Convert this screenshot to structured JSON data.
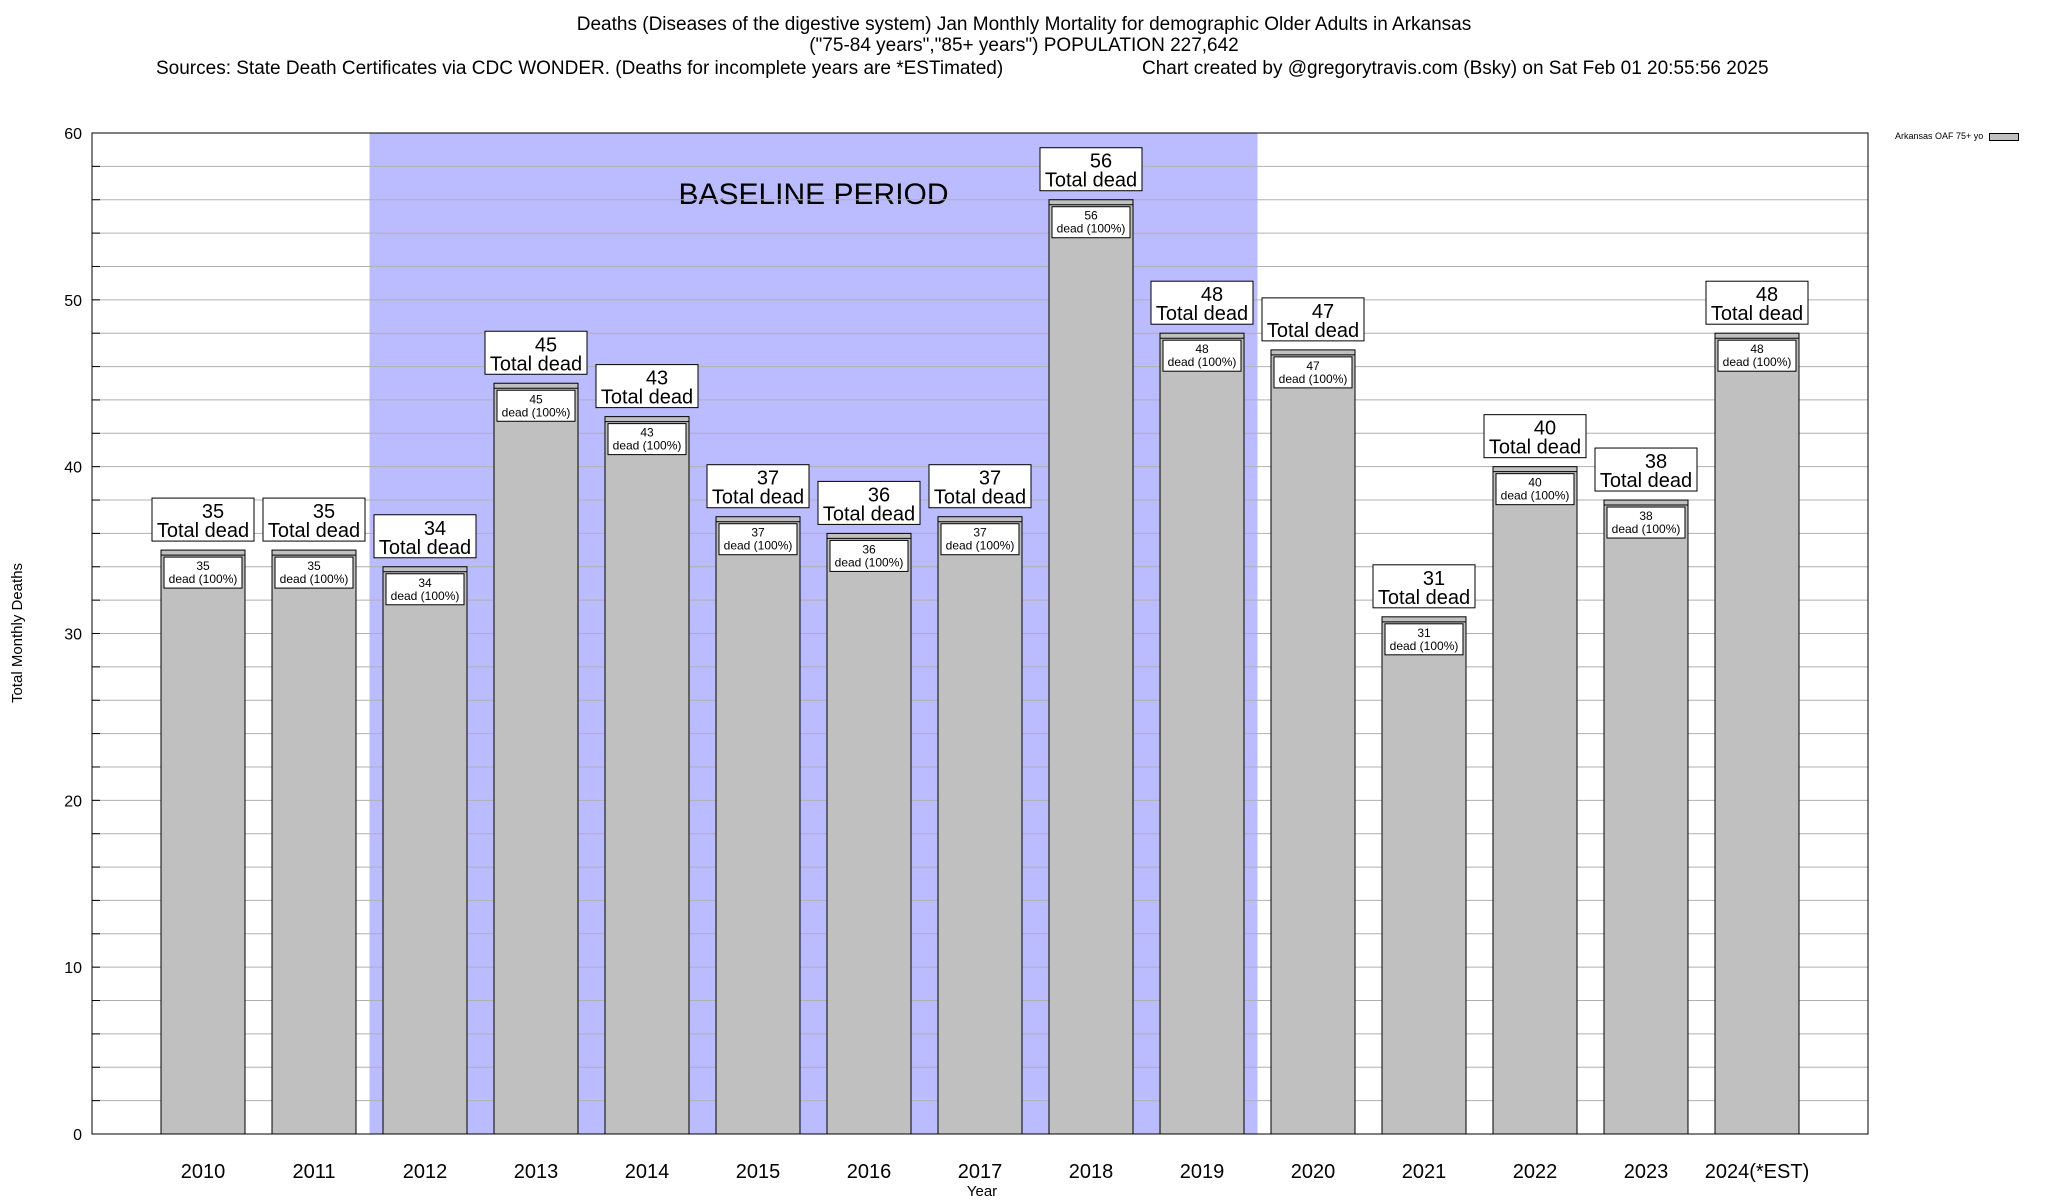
{
  "chart_data": {
    "type": "bar",
    "title_lines": [
      "Deaths (Diseases of the digestive system) Jan Monthly Mortality for demographic Older Adults in Arkansas",
      "(\"75-84 years\",\"85+ years\") POPULATION 227,642",
      "Sources: State Death Certificates via CDC WONDER. (Deaths for incomplete years are *ESTimated)",
      "Chart created by @gregorytravis.com (Bsky) on Sat Feb 01 20:55:56 2025"
    ],
    "xlabel": "Year",
    "ylabel": "Total Monthly Deaths",
    "ylim": [
      0,
      60
    ],
    "yticks": [
      0,
      10,
      20,
      30,
      40,
      50,
      60
    ],
    "categories": [
      "2010",
      "2011",
      "2012",
      "2013",
      "2014",
      "2015",
      "2016",
      "2017",
      "2018",
      "2019",
      "2020",
      "2021",
      "2022",
      "2023",
      "2024(*EST)"
    ],
    "series": [
      {
        "name": "Arkansas OAF 75+ yo",
        "values": [
          35,
          35,
          34,
          45,
          43,
          37,
          36,
          37,
          56,
          48,
          47,
          31,
          40,
          38,
          48
        ]
      }
    ],
    "total_label": "Total dead",
    "inner_label": "dead (100%)",
    "baseline": {
      "label": "BASELINE PERIOD",
      "start": "2012",
      "end": "2019"
    },
    "legend_position": "top-right",
    "grid": true,
    "colors": {
      "bar": "#c0c0c0",
      "baseline": "#bbbbff",
      "grid": "#b0b0b0"
    }
  }
}
